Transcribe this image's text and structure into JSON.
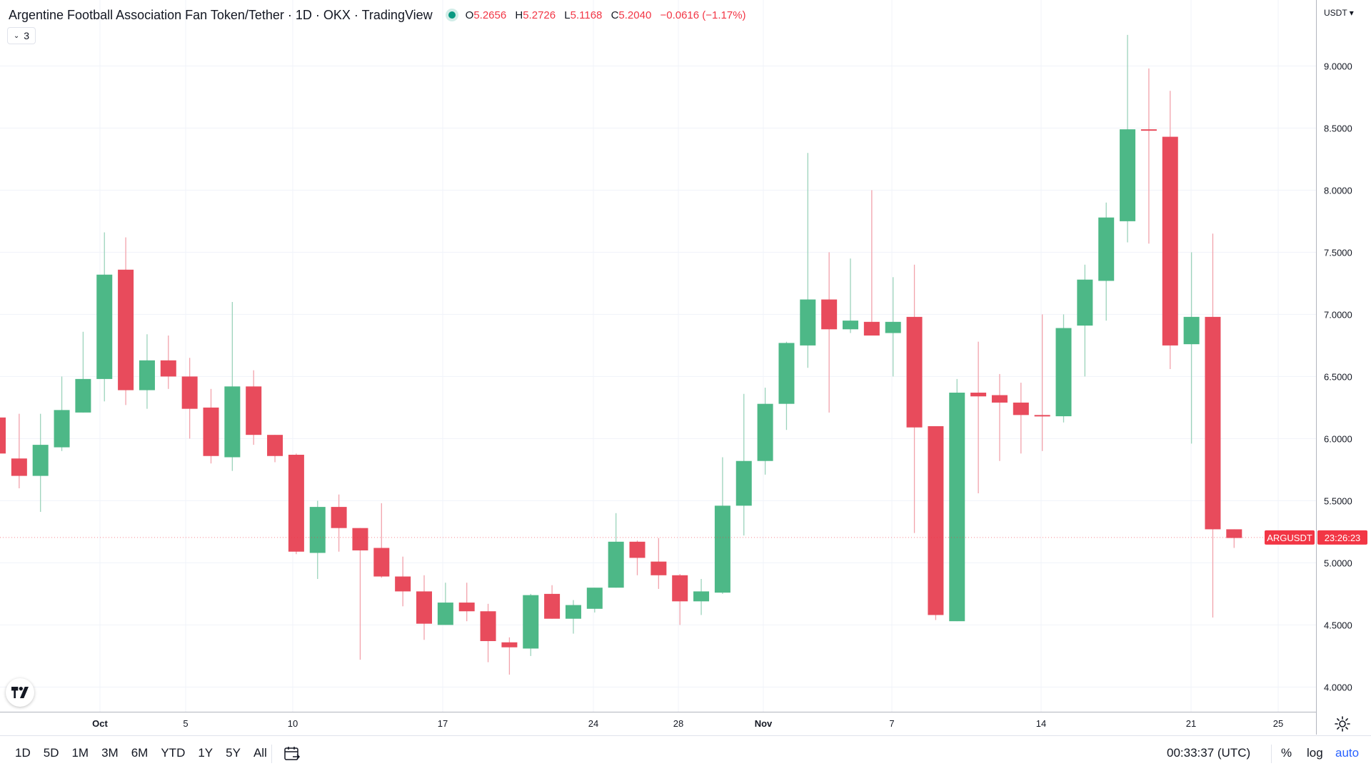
{
  "header": {
    "symbol_title": "Argentine Football Association Fan Token/Tether · 1D · OKX · TradingView",
    "open_label": "O",
    "open_value": "5.2656",
    "high_label": "H",
    "high_value": "5.2726",
    "low_label": "L",
    "low_value": "5.1168",
    "close_label": "C",
    "close_value": "5.2040",
    "change_value": "−0.0616 (−1.17%)",
    "indicators_count": "3",
    "market_status_icon": "status-dot-icon"
  },
  "price_scale": {
    "currency": "USDT",
    "ticks": [
      "9.0000",
      "8.5000",
      "8.0000",
      "7.5000",
      "7.0000",
      "6.5000",
      "6.0000",
      "5.5000",
      "5.0000",
      "4.5000",
      "4.0000"
    ],
    "symbol_badge": "ARGUSDT",
    "countdown": "23:26:23"
  },
  "time_scale": {
    "labels": [
      {
        "text": "Oct",
        "bold": true
      },
      {
        "text": "5",
        "bold": false
      },
      {
        "text": "10",
        "bold": false
      },
      {
        "text": "17",
        "bold": false
      },
      {
        "text": "24",
        "bold": false
      },
      {
        "text": "28",
        "bold": false
      },
      {
        "text": "Nov",
        "bold": true
      },
      {
        "text": "7",
        "bold": false
      },
      {
        "text": "14",
        "bold": false
      },
      {
        "text": "21",
        "bold": false
      },
      {
        "text": "25",
        "bold": false
      }
    ]
  },
  "bottom_toolbar": {
    "ranges": [
      "1D",
      "5D",
      "1M",
      "3M",
      "6M",
      "YTD",
      "1Y",
      "5Y",
      "All"
    ],
    "clock": "00:33:37 (UTC)",
    "percent_label": "%",
    "log_label": "log",
    "auto_label": "auto"
  },
  "colors": {
    "up": "#4db887",
    "down": "#e84b5c",
    "up_wick": "#9bd3bb",
    "down_wick": "#f2a2ab",
    "grid": "#f0f3fa",
    "axis_text": "#131722",
    "badge": "#f23645"
  },
  "chart_data": {
    "type": "candlestick",
    "title": "Argentine Football Association Fan Token/Tether · 1D · OKX",
    "ylabel": "USDT",
    "ylim": [
      3.8,
      9.35
    ],
    "last_price": 5.204,
    "candles": [
      {
        "o": 6.17,
        "h": 6.17,
        "l": 5.85,
        "c": 5.88
      },
      {
        "o": 5.84,
        "h": 6.2,
        "l": 5.6,
        "c": 5.7
      },
      {
        "o": 5.7,
        "h": 6.2,
        "l": 5.41,
        "c": 5.95
      },
      {
        "o": 5.93,
        "h": 6.5,
        "l": 5.9,
        "c": 6.23
      },
      {
        "o": 6.21,
        "h": 6.86,
        "l": 6.21,
        "c": 6.48
      },
      {
        "o": 6.48,
        "h": 7.66,
        "l": 6.3,
        "c": 7.32
      },
      {
        "o": 7.36,
        "h": 7.62,
        "l": 6.27,
        "c": 6.39
      },
      {
        "o": 6.39,
        "h": 6.84,
        "l": 6.24,
        "c": 6.63
      },
      {
        "o": 6.63,
        "h": 6.83,
        "l": 6.4,
        "c": 6.5
      },
      {
        "o": 6.5,
        "h": 6.65,
        "l": 6.0,
        "c": 6.24
      },
      {
        "o": 6.25,
        "h": 6.4,
        "l": 5.8,
        "c": 5.86
      },
      {
        "o": 5.85,
        "h": 7.1,
        "l": 5.74,
        "c": 6.42
      },
      {
        "o": 6.42,
        "h": 6.55,
        "l": 5.95,
        "c": 6.03
      },
      {
        "o": 6.03,
        "h": 6.03,
        "l": 5.81,
        "c": 5.86
      },
      {
        "o": 5.87,
        "h": 5.88,
        "l": 5.07,
        "c": 5.09
      },
      {
        "o": 5.08,
        "h": 5.5,
        "l": 4.87,
        "c": 5.45
      },
      {
        "o": 5.45,
        "h": 5.55,
        "l": 5.09,
        "c": 5.28
      },
      {
        "o": 5.28,
        "h": 5.28,
        "l": 4.22,
        "c": 5.1
      },
      {
        "o": 5.12,
        "h": 5.48,
        "l": 4.88,
        "c": 4.89
      },
      {
        "o": 4.89,
        "h": 5.05,
        "l": 4.65,
        "c": 4.77
      },
      {
        "o": 4.77,
        "h": 4.9,
        "l": 4.38,
        "c": 4.51
      },
      {
        "o": 4.5,
        "h": 4.84,
        "l": 4.5,
        "c": 4.68
      },
      {
        "o": 4.68,
        "h": 4.84,
        "l": 4.53,
        "c": 4.61
      },
      {
        "o": 4.61,
        "h": 4.67,
        "l": 4.2,
        "c": 4.37
      },
      {
        "o": 4.36,
        "h": 4.4,
        "l": 4.1,
        "c": 4.32
      },
      {
        "o": 4.31,
        "h": 4.75,
        "l": 4.25,
        "c": 4.74
      },
      {
        "o": 4.75,
        "h": 4.82,
        "l": 4.55,
        "c": 4.55
      },
      {
        "o": 4.55,
        "h": 4.7,
        "l": 4.43,
        "c": 4.66
      },
      {
        "o": 4.63,
        "h": 4.8,
        "l": 4.6,
        "c": 4.8
      },
      {
        "o": 4.8,
        "h": 5.4,
        "l": 4.8,
        "c": 5.17
      },
      {
        "o": 5.17,
        "h": 5.18,
        "l": 4.9,
        "c": 5.04
      },
      {
        "o": 5.01,
        "h": 5.2,
        "l": 4.79,
        "c": 4.9
      },
      {
        "o": 4.9,
        "h": 4.91,
        "l": 4.5,
        "c": 4.69
      },
      {
        "o": 4.69,
        "h": 4.87,
        "l": 4.58,
        "c": 4.77
      },
      {
        "o": 4.76,
        "h": 5.85,
        "l": 4.75,
        "c": 5.46
      },
      {
        "o": 5.46,
        "h": 6.36,
        "l": 5.22,
        "c": 5.82
      },
      {
        "o": 5.82,
        "h": 6.41,
        "l": 5.71,
        "c": 6.28
      },
      {
        "o": 6.28,
        "h": 6.78,
        "l": 6.07,
        "c": 6.77
      },
      {
        "o": 6.75,
        "h": 8.3,
        "l": 6.57,
        "c": 7.12
      },
      {
        "o": 7.12,
        "h": 7.5,
        "l": 6.21,
        "c": 6.88
      },
      {
        "o": 6.88,
        "h": 7.45,
        "l": 6.85,
        "c": 6.95
      },
      {
        "o": 6.94,
        "h": 8.0,
        "l": 6.84,
        "c": 6.83
      },
      {
        "o": 6.85,
        "h": 7.3,
        "l": 6.5,
        "c": 6.94
      },
      {
        "o": 6.98,
        "h": 7.4,
        "l": 5.24,
        "c": 6.09
      },
      {
        "o": 6.1,
        "h": 6.1,
        "l": 4.54,
        "c": 4.58
      },
      {
        "o": 4.53,
        "h": 6.48,
        "l": 4.53,
        "c": 6.37
      },
      {
        "o": 6.37,
        "h": 6.78,
        "l": 5.56,
        "c": 6.34
      },
      {
        "o": 6.35,
        "h": 6.52,
        "l": 5.82,
        "c": 6.29
      },
      {
        "o": 6.29,
        "h": 6.45,
        "l": 5.88,
        "c": 6.19
      },
      {
        "o": 6.19,
        "h": 7.0,
        "l": 5.9,
        "c": 6.18
      },
      {
        "o": 6.18,
        "h": 7.0,
        "l": 6.13,
        "c": 6.89
      },
      {
        "o": 6.91,
        "h": 7.4,
        "l": 6.5,
        "c": 7.28
      },
      {
        "o": 7.27,
        "h": 7.9,
        "l": 6.95,
        "c": 7.78
      },
      {
        "o": 7.75,
        "h": 9.25,
        "l": 7.58,
        "c": 8.49
      },
      {
        "o": 8.49,
        "h": 8.98,
        "l": 7.57,
        "c": 8.48
      },
      {
        "o": 8.43,
        "h": 8.8,
        "l": 6.56,
        "c": 6.75
      },
      {
        "o": 6.76,
        "h": 7.5,
        "l": 5.96,
        "c": 6.98
      },
      {
        "o": 6.98,
        "h": 7.65,
        "l": 4.56,
        "c": 5.27
      },
      {
        "o": 5.27,
        "h": 5.27,
        "l": 5.12,
        "c": 5.2
      }
    ]
  }
}
